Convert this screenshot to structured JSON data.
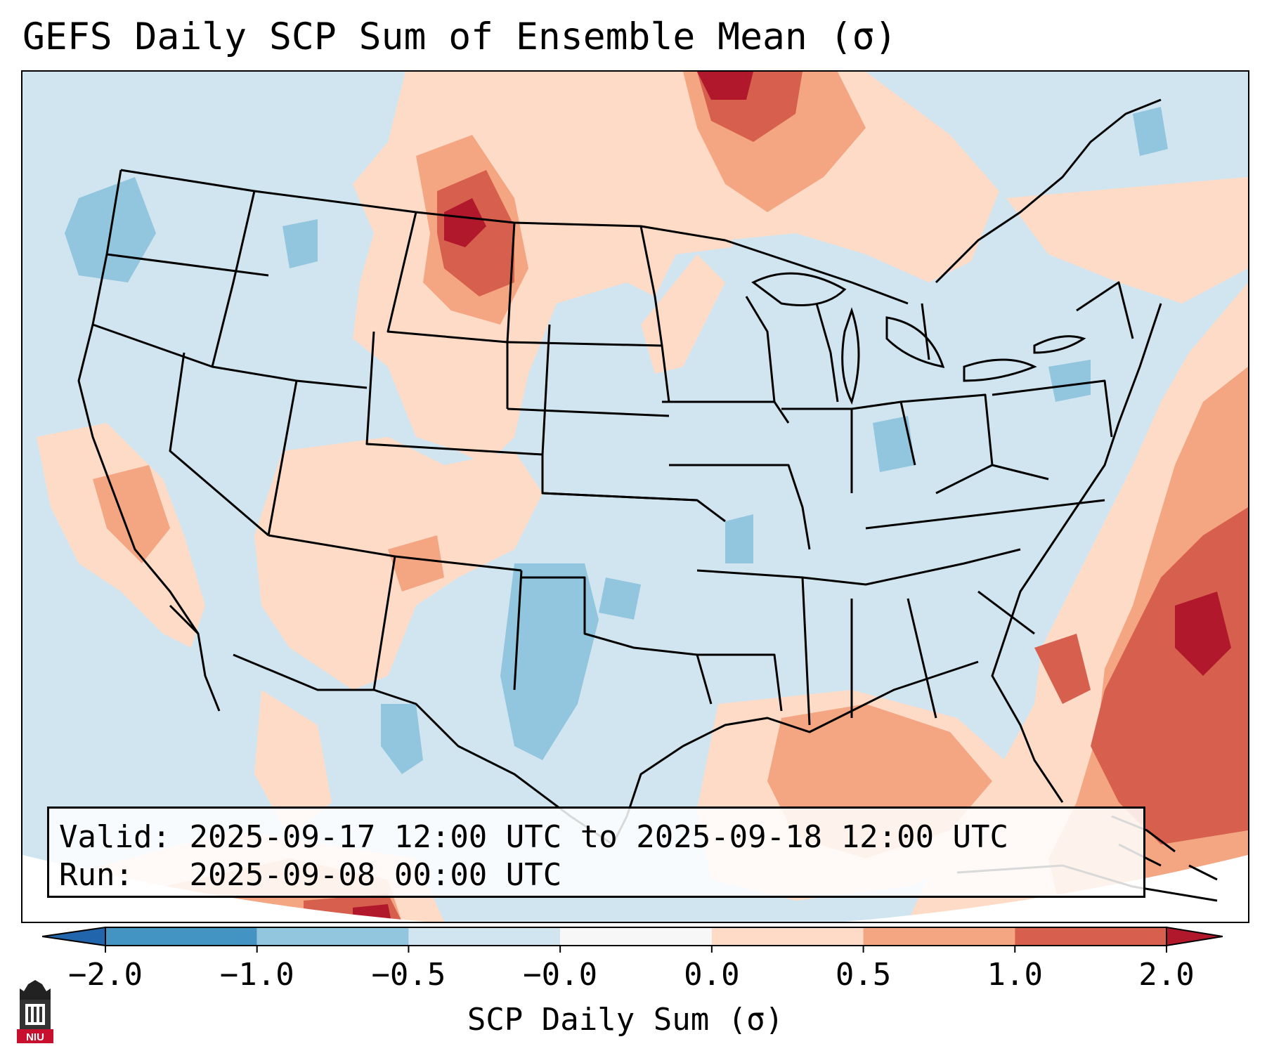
{
  "title": "GEFS Daily SCP Sum of Ensemble Mean (σ)",
  "info": {
    "valid_label": "Valid:",
    "valid_value": "2025-09-17 12:00 UTC to 2025-09-18 12:00 UTC",
    "run_label": "Run:",
    "run_value": "2025-09-08 00:00 UTC"
  },
  "colorbar": {
    "label": "SCP Daily Sum (σ)",
    "ticks": [
      "−2.0",
      "−1.0",
      "−0.5",
      "−0.0",
      "0.0",
      "0.5",
      "1.0",
      "2.0"
    ],
    "levels": [
      -2.0,
      -1.0,
      -0.5,
      -0.0,
      0.0,
      0.5,
      1.0,
      2.0
    ],
    "bin_colors": [
      "#4393c3",
      "#92c5de",
      "#d1e5f0",
      "#f7f7f7",
      "#fddbc7",
      "#f4a582",
      "#d6604d"
    ],
    "under_color": "#2166ac",
    "over_color": "#b2182b"
  },
  "map": {
    "region": "Contiguous United States",
    "background_color": "#d1e5f0"
  },
  "logo": {
    "icon": "niu-logo-icon",
    "text": "NIU",
    "color": "#c8102e"
  }
}
